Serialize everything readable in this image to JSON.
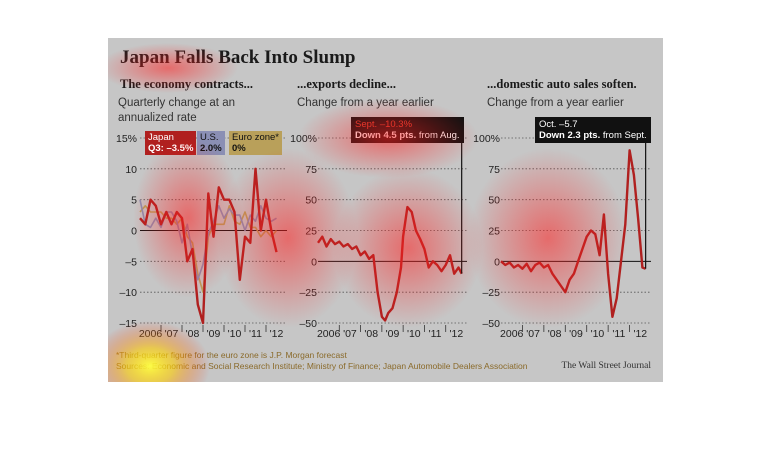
{
  "title": "Japan Falls Back Into Slump",
  "source_credit": "The Wall Street Journal",
  "footnote": "*Third-quarter figure for the euro zone is J.P. Morgan forecast",
  "sources": "Sources: Economic and Social Research Institute; Ministry of Finance; Japan Automobile Dealers Association",
  "colors": {
    "japan": "#b0201f",
    "us": "#8a8fb4",
    "euro": "#b9a05a",
    "background": "#c6c6c6"
  },
  "chart_data": [
    {
      "type": "line",
      "title": "The economy contracts...",
      "subtitle": "Quarterly change at an annualized rate",
      "ylim": [
        -15,
        15
      ],
      "yticks": [
        15,
        10,
        5,
        0,
        -5,
        -10,
        -15
      ],
      "ytick_labels": [
        "15%",
        "10",
        "5",
        "0",
        "–5",
        "–10",
        "–15"
      ],
      "xtick_labels": [
        "2006",
        "'07",
        "'08",
        "'09",
        "'10",
        "'11",
        "'12"
      ],
      "xlim": [
        2006,
        2013
      ],
      "legend": [
        {
          "name": "Japan",
          "value": "Q3: –3.5%"
        },
        {
          "name": "U.S.",
          "value": "2.0%"
        },
        {
          "name": "Euro zone*",
          "value": "0%"
        }
      ],
      "series": [
        {
          "name": "Japan",
          "x": [
            2006.0,
            2006.25,
            2006.5,
            2006.75,
            2007.0,
            2007.25,
            2007.5,
            2007.75,
            2008.0,
            2008.25,
            2008.5,
            2008.75,
            2009.0,
            2009.25,
            2009.5,
            2009.75,
            2010.0,
            2010.25,
            2010.5,
            2010.75,
            2011.0,
            2011.25,
            2011.5,
            2011.75,
            2012.0,
            2012.25,
            2012.5
          ],
          "y": [
            2,
            1,
            5,
            4,
            1,
            3,
            1,
            3,
            2,
            -5,
            -3,
            -12,
            -15,
            6,
            -1,
            7,
            5,
            5,
            3,
            -8,
            -1,
            -2,
            10,
            0,
            5,
            0,
            -3.5
          ]
        },
        {
          "name": "U.S.",
          "x": [
            2006.0,
            2006.25,
            2006.5,
            2006.75,
            2007.0,
            2007.25,
            2007.5,
            2007.75,
            2008.0,
            2008.25,
            2008.5,
            2008.75,
            2009.0,
            2009.25,
            2009.5,
            2009.75,
            2010.0,
            2010.25,
            2010.5,
            2010.75,
            2011.0,
            2011.25,
            2011.5,
            2011.75,
            2012.0,
            2012.25,
            2012.5
          ],
          "y": [
            5,
            1,
            0.5,
            2,
            0.5,
            3,
            3,
            1.5,
            -2,
            1,
            -4,
            -8,
            -5.5,
            -0.5,
            1.5,
            4,
            2,
            3.5,
            2.5,
            2.5,
            0,
            2.5,
            1.5,
            4,
            2,
            1.5,
            2
          ]
        },
        {
          "name": "Euro zone*",
          "x": [
            2006.0,
            2006.25,
            2006.5,
            2006.75,
            2007.0,
            2007.25,
            2007.5,
            2007.75,
            2008.0,
            2008.25,
            2008.5,
            2008.75,
            2009.0,
            2009.25,
            2009.5,
            2009.75,
            2010.0,
            2010.25,
            2010.5,
            2010.75,
            2011.0,
            2011.25,
            2011.5,
            2011.75,
            2012.0,
            2012.25,
            2012.5
          ],
          "y": [
            3,
            4,
            3,
            3,
            3,
            2,
            2,
            1,
            2,
            -1,
            -2,
            -7,
            -10,
            -1,
            1,
            1,
            1,
            4,
            1.5,
            1,
            3,
            0.5,
            0.5,
            -1,
            0,
            -1,
            0
          ]
        }
      ]
    },
    {
      "type": "line",
      "title": "...exports decline...",
      "subtitle": "Change from a year earlier",
      "ylim": [
        -50,
        100
      ],
      "yticks": [
        100,
        75,
        50,
        25,
        0,
        -25,
        -50
      ],
      "ytick_labels": [
        "100%",
        "75",
        "50",
        "25",
        "0",
        "–25",
        "–50"
      ],
      "xtick_labels": [
        "2006",
        "'07",
        "'08",
        "'09",
        "'10",
        "'11",
        "'12"
      ],
      "xlim": [
        2006,
        2013
      ],
      "annotation": {
        "line1": "Sept. –10.3%",
        "line2_bold": "Down 4.5 pts.",
        "line2_rest": " from Aug."
      },
      "series": [
        {
          "name": "Japan",
          "x": [
            2006.0,
            2006.2,
            2006.4,
            2006.6,
            2006.8,
            2007.0,
            2007.2,
            2007.4,
            2007.6,
            2007.8,
            2008.0,
            2008.2,
            2008.4,
            2008.6,
            2008.8,
            2009.0,
            2009.15,
            2009.3,
            2009.5,
            2009.7,
            2009.9,
            2010.0,
            2010.2,
            2010.4,
            2010.6,
            2010.8,
            2011.0,
            2011.2,
            2011.4,
            2011.6,
            2011.8,
            2012.0,
            2012.2,
            2012.4,
            2012.6,
            2012.75
          ],
          "y": [
            15,
            20,
            12,
            18,
            14,
            16,
            12,
            14,
            10,
            12,
            5,
            8,
            2,
            5,
            -25,
            -45,
            -48,
            -42,
            -38,
            -25,
            -5,
            20,
            44,
            40,
            25,
            18,
            10,
            -5,
            0,
            -3,
            -8,
            -3,
            5,
            -10,
            -5,
            -10
          ]
        }
      ]
    },
    {
      "type": "line",
      "title": "...domestic auto sales soften.",
      "subtitle": "Change from a year earlier",
      "ylim": [
        -50,
        100
      ],
      "yticks": [
        100,
        75,
        50,
        25,
        0,
        -25,
        -50
      ],
      "ytick_labels": [
        "100%",
        "75",
        "50",
        "25",
        "0",
        "–25",
        "–50"
      ],
      "xtick_labels": [
        "2006",
        "'07",
        "'08",
        "'09",
        "'10",
        "'11",
        "'12"
      ],
      "xlim": [
        2006,
        2013
      ],
      "annotation": {
        "line1": "Oct. –5.7",
        "line2_bold": "Down 2.3 pts.",
        "line2_rest": " from Sept."
      },
      "series": [
        {
          "name": "Japan",
          "x": [
            2006.0,
            2006.2,
            2006.4,
            2006.6,
            2006.8,
            2007.0,
            2007.2,
            2007.4,
            2007.6,
            2007.8,
            2008.0,
            2008.2,
            2008.4,
            2008.6,
            2008.8,
            2009.0,
            2009.2,
            2009.4,
            2009.6,
            2009.8,
            2010.0,
            2010.2,
            2010.4,
            2010.6,
            2010.8,
            2011.0,
            2011.2,
            2011.4,
            2011.6,
            2011.8,
            2012.0,
            2012.2,
            2012.4,
            2012.6,
            2012.75
          ],
          "y": [
            0,
            -3,
            -1,
            -5,
            -3,
            -6,
            -2,
            -8,
            -3,
            -1,
            -5,
            -3,
            -10,
            -15,
            -20,
            -25,
            -15,
            -10,
            0,
            10,
            20,
            25,
            22,
            5,
            38,
            -10,
            -45,
            -30,
            0,
            30,
            90,
            70,
            35,
            -5,
            -6
          ]
        }
      ]
    }
  ]
}
